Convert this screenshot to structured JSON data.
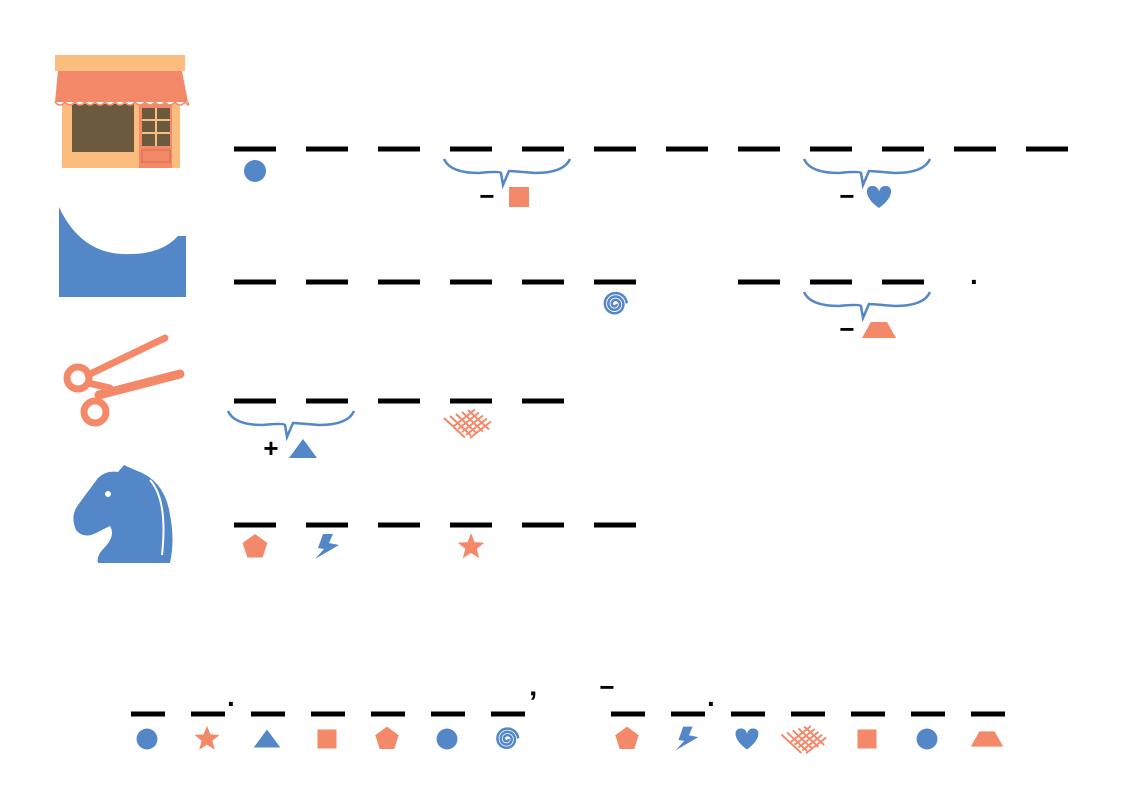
{
  "colors": {
    "blue": "#5487c8",
    "orange": "#f4896a",
    "dash": "#000000",
    "awning": "#f4896a",
    "awning_top": "#fbbd7e",
    "window": "#6b5a3e"
  },
  "picture_rows": [
    {
      "picture": "store-icon",
      "slots": [
        {
          "mark": "circle",
          "color": "blue"
        },
        {},
        {},
        {},
        {},
        {},
        {},
        {},
        {},
        {},
        {},
        {}
      ],
      "groups": [
        {
          "first": 3,
          "last": 4,
          "op": "−",
          "symbol": "square",
          "color": "orange"
        },
        {
          "first": 8,
          "last": 9,
          "op": "−",
          "symbol": "heart",
          "color": "blue"
        }
      ],
      "trailing": ""
    },
    {
      "picture": "wave-icon",
      "slots": [
        {},
        {},
        {},
        {},
        {},
        {
          "mark": "spiral",
          "color": "blue"
        },
        null,
        {},
        {},
        {}
      ],
      "groups": [
        {
          "first": 8,
          "last": 9,
          "op": "−",
          "symbol": "trapezoid",
          "color": "orange"
        }
      ],
      "trailing": "."
    },
    {
      "picture": "scissors-icon",
      "slots": [
        {},
        {},
        {},
        {
          "mark": "crosshatch",
          "color": "orange"
        },
        {}
      ],
      "groups": [
        {
          "first": 0,
          "last": 1,
          "op": "+",
          "symbol": "triangle",
          "color": "blue"
        }
      ],
      "trailing": ""
    },
    {
      "picture": "chess-knight-icon",
      "slots": [
        {
          "mark": "pentagon",
          "color": "orange"
        },
        {
          "mark": "lightning",
          "color": "blue"
        },
        {},
        {
          "mark": "star",
          "color": "orange"
        },
        {},
        {}
      ],
      "groups": [],
      "trailing": ""
    }
  ],
  "answer_line": {
    "slots": [
      {
        "mark": "circle",
        "color": "blue"
      },
      {
        "mark": "star",
        "color": "orange",
        "after": "."
      },
      {
        "mark": "triangle",
        "color": "blue"
      },
      {
        "mark": "square",
        "color": "orange"
      },
      {
        "mark": "pentagon",
        "color": "orange"
      },
      {
        "mark": "circle",
        "color": "blue"
      },
      {
        "mark": "spiral",
        "color": "blue",
        "after": "’"
      },
      null,
      {
        "mark": "pentagon",
        "color": "orange",
        "before": "−"
      },
      {
        "mark": "lightning",
        "color": "blue",
        "after": "."
      },
      {
        "mark": "heart",
        "color": "blue"
      },
      {
        "mark": "crosshatch",
        "color": "orange"
      },
      {
        "mark": "square",
        "color": "orange"
      },
      {
        "mark": "circle",
        "color": "blue"
      },
      {
        "mark": "trapezoid",
        "color": "orange"
      }
    ]
  }
}
